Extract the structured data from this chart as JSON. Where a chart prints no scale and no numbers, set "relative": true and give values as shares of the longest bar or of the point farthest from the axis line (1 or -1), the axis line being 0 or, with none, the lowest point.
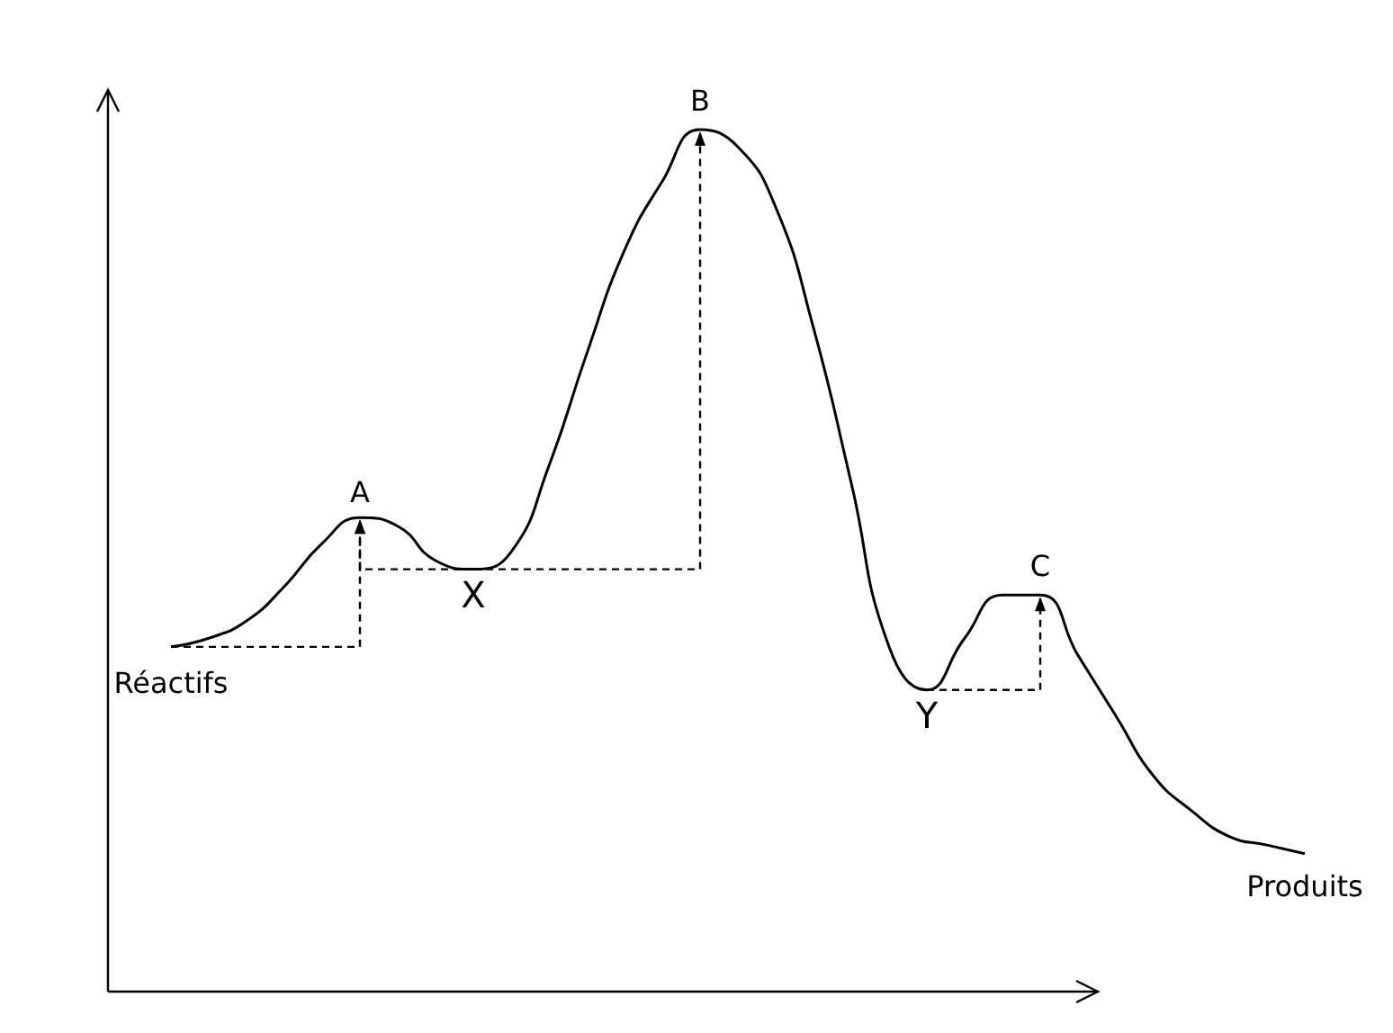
{
  "chart_data": {
    "type": "line",
    "relative": true,
    "color": "#000000",
    "marker": "none",
    "grid": false,
    "categories": [
      null,
      null,
      null,
      null,
      null,
      null,
      null,
      null,
      null,
      null,
      null,
      null,
      null,
      null,
      null,
      null,
      null,
      null,
      null,
      null,
      null,
      null,
      null,
      null,
      null,
      null,
      null,
      null,
      null,
      null,
      null
    ],
    "values": [
      0.4,
      0.41,
      0.43,
      0.47,
      0.52,
      0.55,
      0.54,
      0.5,
      0.49,
      0.51,
      0.61,
      0.74,
      0.86,
      0.94,
      1,
      0.98,
      0.91,
      0.77,
      0.59,
      0.4,
      0.35,
      0.41,
      0.46,
      0.46,
      0.39,
      0.32,
      0.25,
      0.21,
      0.18,
      0.17,
      0.16
    ],
    "annotations": [
      "A",
      "B",
      "C",
      "X",
      "Y",
      "Réactifs",
      "Produits"
    ]
  }
}
